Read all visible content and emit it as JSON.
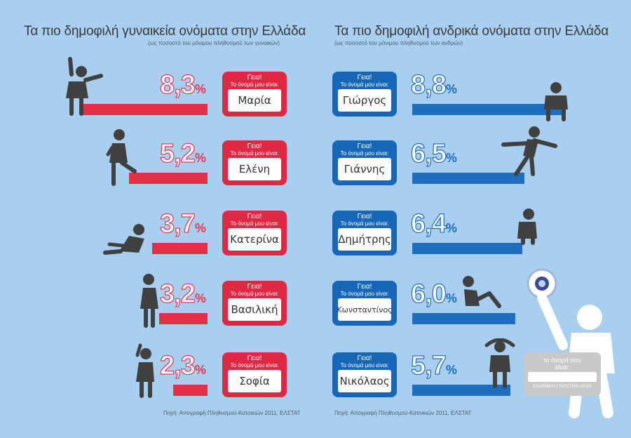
{
  "female": {
    "title": "Τα πιο δημοφιλή γυναικεία ονόματα στην Ελλάδα",
    "subtitle": "(ως ποσοστό του μόνιμου πληθυσμού των γυναικών)",
    "names": [
      "Μαρία",
      "Ελένη",
      "Κατερίνα",
      "Βασιλική",
      "Σοφία"
    ],
    "pct_labels": [
      "8,3",
      "5,2",
      "3,7",
      "3,2",
      "2,3"
    ]
  },
  "male": {
    "title": "Τα πιο δημοφιλή ανδρικά ονόματα στην Ελλάδα",
    "subtitle": "(ως ποσοστό του μόνιμου πληθυσμού των ανδρών)",
    "names": [
      "Γιώργος",
      "Γιάννης",
      "Δημήτρης",
      "Κωνσταντίνος",
      "Νικόλαος"
    ],
    "pct_labels": [
      "8,8",
      "6,5",
      "6,4",
      "6,0",
      "5,7"
    ]
  },
  "percent_sign": "%",
  "tag": {
    "hello": "Γεια!",
    "intro": "Το όνομά μου είναι:"
  },
  "big_tag": {
    "line1": "το όνομά σου\nείναι:",
    "line2": "ΕΛΛΗΝΙΚΗ ΣΤΑΤΙΣΤΙΚΗ ΑΡΧΗ"
  },
  "source": "Πηγή: Απογραφή Πληθυσμού-Κατοικιών 2011, ΕΛΣΤΑΤ",
  "colors": {
    "female": "#e33044",
    "male": "#1e6ec0",
    "background": "#a9cff0",
    "figure": "#404040"
  },
  "chart_data": [
    {
      "type": "bar",
      "title": "Τα πιο δημοφιλή γυναικεία ονόματα στην Ελλάδα",
      "subtitle": "(ως ποσοστό του μόνιμου πληθυσμού των γυναικών)",
      "categories": [
        "Μαρία",
        "Ελένη",
        "Κατερίνα",
        "Βασιλική",
        "Σοφία"
      ],
      "values": [
        8.3,
        5.2,
        3.7,
        3.2,
        2.3
      ],
      "unit": "%",
      "orientation": "horizontal",
      "direction": "right-to-left"
    },
    {
      "type": "bar",
      "title": "Τα πιο δημοφιλή ανδρικά ονόματα στην Ελλάδα",
      "subtitle": "(ως ποσοστό του μόνιμου πληθυσμού των ανδρών)",
      "categories": [
        "Γιώργος",
        "Γιάννης",
        "Δημήτρης",
        "Κωνσταντίνος",
        "Νικόλαος"
      ],
      "values": [
        8.8,
        6.5,
        6.4,
        6.0,
        5.7
      ],
      "unit": "%",
      "orientation": "horizontal",
      "direction": "left-to-right"
    }
  ]
}
